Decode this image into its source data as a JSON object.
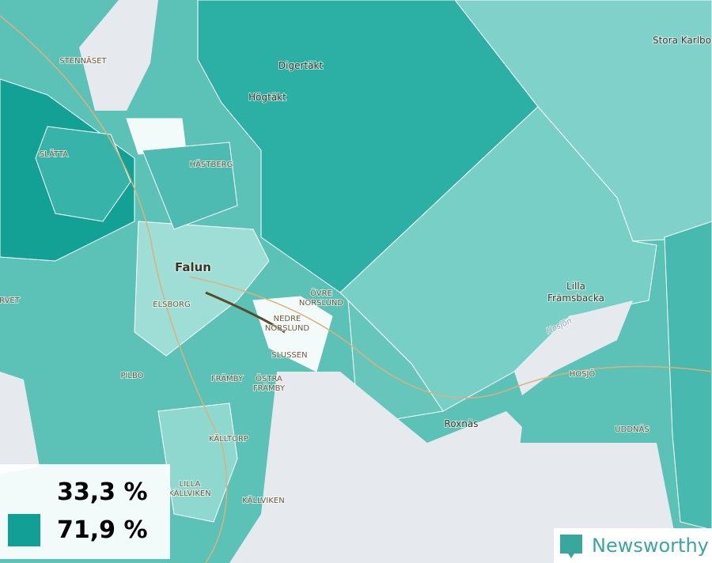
{
  "places": [
    [
      "STENNÄSET"
    ],
    [
      "Digertäkt"
    ],
    [
      "Stora Karlbo"
    ],
    [
      "Högtäkt"
    ],
    [
      "SLÄTTA"
    ],
    [
      "HÄSTBERG"
    ],
    [
      "Falun"
    ],
    [
      "ÖVRE",
      "NORSLUND"
    ],
    [
      "NEDRE",
      "NORSLUND"
    ],
    [
      "ELSBORG"
    ],
    [
      "RVET"
    ],
    [
      "SLUSSEN"
    ],
    [
      "PILBO"
    ],
    [
      "FRÄMBY"
    ],
    [
      "ÖSTRA",
      "FRÄMBY"
    ],
    [
      "Lilla",
      "Främsbacka"
    ],
    [
      "Hosjön"
    ],
    [
      "HOSJÖ"
    ],
    [
      "Roxnäs"
    ],
    [
      "UDDNÄS"
    ],
    [
      "KÄLLTORP"
    ],
    [
      "LILLA",
      "KÄLLVIKEN"
    ],
    [
      "KÄLLVIKEN"
    ]
  ],
  "legend": [
    {
      "label": "33,3 %",
      "color": "#f2fbfa"
    },
    {
      "label": "71,9 %",
      "color": "#12a096"
    }
  ],
  "brand": "Newsworthy"
}
